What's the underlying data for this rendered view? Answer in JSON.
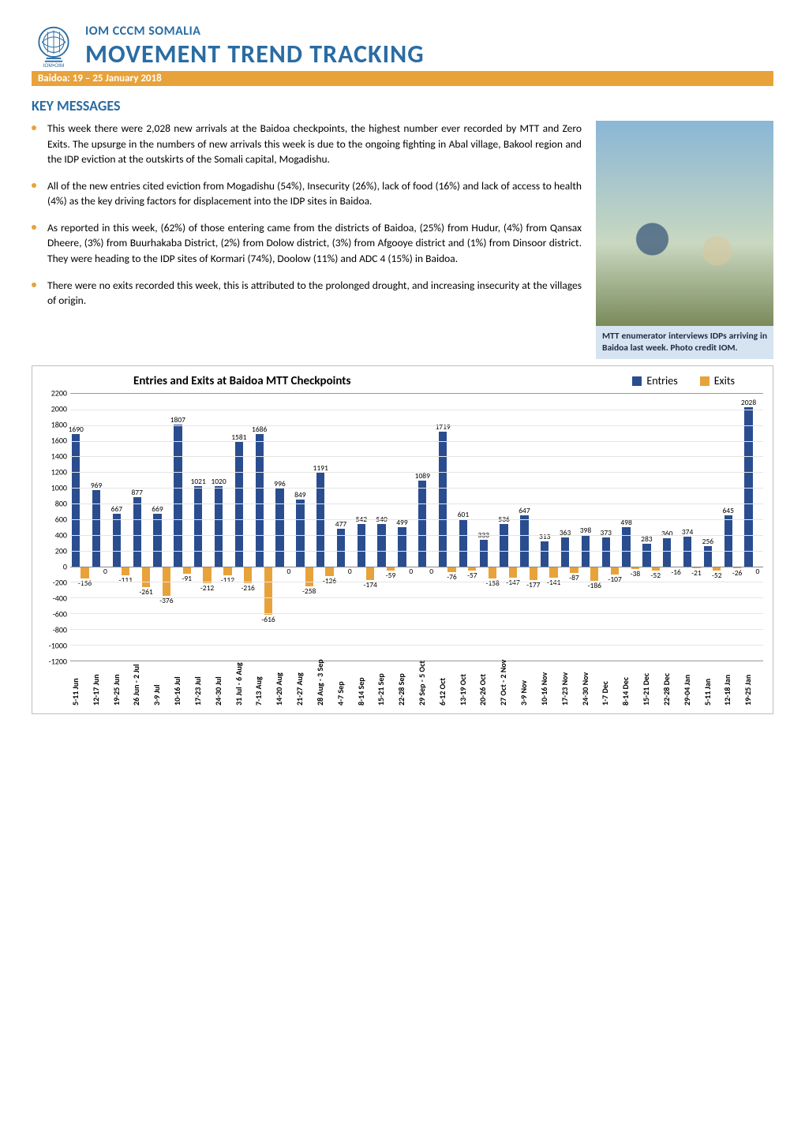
{
  "header": {
    "org": "IOM CCCM SOMALIA",
    "title": "MOVEMENT TREND TRACKING",
    "dateband": "Baidoa: 19 – 25 January 2018",
    "logo_text": "IOM•OIM",
    "accent_color": "#2a6ca3",
    "band_color": "#e8a23a"
  },
  "km": {
    "heading": "KEY MESSAGES",
    "bullets": [
      "This week there were 2,028 new arrivals at the Baidoa checkpoints, the highest number ever recorded by MTT and Zero Exits. The upsurge in the numbers of new arrivals this week is due to the ongoing fighting in Abal village, Bakool region and the IDP eviction at the outskirts of the Somali capital, Mogadishu.",
      "All of the new entries cited eviction from Mogadishu (54%), Insecurity (26%), lack of food (16%) and lack of access to health (4%) as the key driving factors for displacement into the IDP sites in Baidoa.",
      "As reported in this week, (62%) of those entering came from the districts of Baidoa, (25%) from Hudur, (4%) from Qansax Dheere, (3%) from Buurhakaba District, (2%) from Dolow district, (3%) from Afgooye district and (1%) from Dinsoor district. They were heading to the IDP sites of Kormari (74%), Doolow (11%) and ADC 4 (15%) in Baidoa.",
      "There were no exits recorded this week, this is attributed to the prolonged drought, and increasing insecurity at the villages of origin."
    ]
  },
  "photo": {
    "caption": "MTT enumerator interviews IDPs arriving in Baidoa last week. Photo credit IOM."
  },
  "chart": {
    "type": "bar",
    "title": "Entries and Exits at Baidoa MTT Checkpoints",
    "legend": [
      {
        "label": "Entries",
        "color": "#2a4d8f"
      },
      {
        "label": "Exits",
        "color": "#e8a23a"
      }
    ],
    "y": {
      "min": -1200,
      "max": 2200,
      "step": 200
    },
    "grid_color": "#e5e5e5",
    "axis_color": "#888888",
    "label_fontsize": 10,
    "entry_color": "#2a4d8f",
    "exit_color": "#e8a23a",
    "weeks": [
      {
        "label": "5-11 Jun",
        "entry": 1690,
        "exit": -156
      },
      {
        "label": "12-17 Jun",
        "entry": 969,
        "exit": 0
      },
      {
        "label": "19-25 Jun",
        "entry": 667,
        "exit": -111
      },
      {
        "label": "26 Jun - 2 Jul",
        "entry": 877,
        "exit": -261
      },
      {
        "label": "3-9 Jul",
        "entry": 669,
        "exit": -376
      },
      {
        "label": "10-16 Jul",
        "entry": 1807,
        "exit": -91
      },
      {
        "label": "17-23 Jul",
        "entry": 1021,
        "exit": -212
      },
      {
        "label": "24-30 Jul",
        "entry": 1020,
        "exit": -112
      },
      {
        "label": "31 Jul - 6 Aug",
        "entry": 1581,
        "exit": -216
      },
      {
        "label": "7-13 Aug",
        "entry": 1686,
        "exit": -616
      },
      {
        "label": "14-20 Aug",
        "entry": 996,
        "exit": 0
      },
      {
        "label": "21-27 Aug",
        "entry": 849,
        "exit": -258
      },
      {
        "label": "28 Aug - 3 Sep",
        "entry": 1191,
        "exit": -126
      },
      {
        "label": "4-7 Sep",
        "entry": 477,
        "exit": 0
      },
      {
        "label": "8-14 Sep",
        "entry": 542,
        "exit": -174
      },
      {
        "label": "15-21 Sep",
        "entry": 540,
        "exit": -59
      },
      {
        "label": "22-28 Sep",
        "entry": 499,
        "exit": 0
      },
      {
        "label": "29 Sep - 5 Oct",
        "entry": 1089,
        "exit": 0
      },
      {
        "label": "6-12 Oct",
        "entry": 1719,
        "exit": -76
      },
      {
        "label": "13-19 Oct",
        "entry": 601,
        "exit": -57
      },
      {
        "label": "20-26 Oct",
        "entry": 333,
        "exit": -158
      },
      {
        "label": "27 Oct - 2 Nov",
        "entry": 536,
        "exit": -147
      },
      {
        "label": "3-9 Nov",
        "entry": 647,
        "exit": -177
      },
      {
        "label": "10-16 Nov",
        "entry": 313,
        "exit": -141
      },
      {
        "label": "17-23 Nov",
        "entry": 363,
        "exit": -87
      },
      {
        "label": "24-30 Nov",
        "entry": 398,
        "exit": -186
      },
      {
        "label": "1-7 Dec",
        "entry": 373,
        "exit": -107
      },
      {
        "label": "8-14 Dec",
        "entry": 498,
        "exit": -38
      },
      {
        "label": "15-21 Dec",
        "entry": 283,
        "exit": -52
      },
      {
        "label": "22-28 Dec",
        "entry": 360,
        "exit": -16
      },
      {
        "label": "29-04 Jan",
        "entry": 374,
        "exit": -21
      },
      {
        "label": "5-11 Jan",
        "entry": 256,
        "exit": -52
      },
      {
        "label": "12-18 Jan",
        "entry": 645,
        "exit": -26
      },
      {
        "label": "19-25 Jan",
        "entry": 2028,
        "exit": 0
      }
    ]
  }
}
